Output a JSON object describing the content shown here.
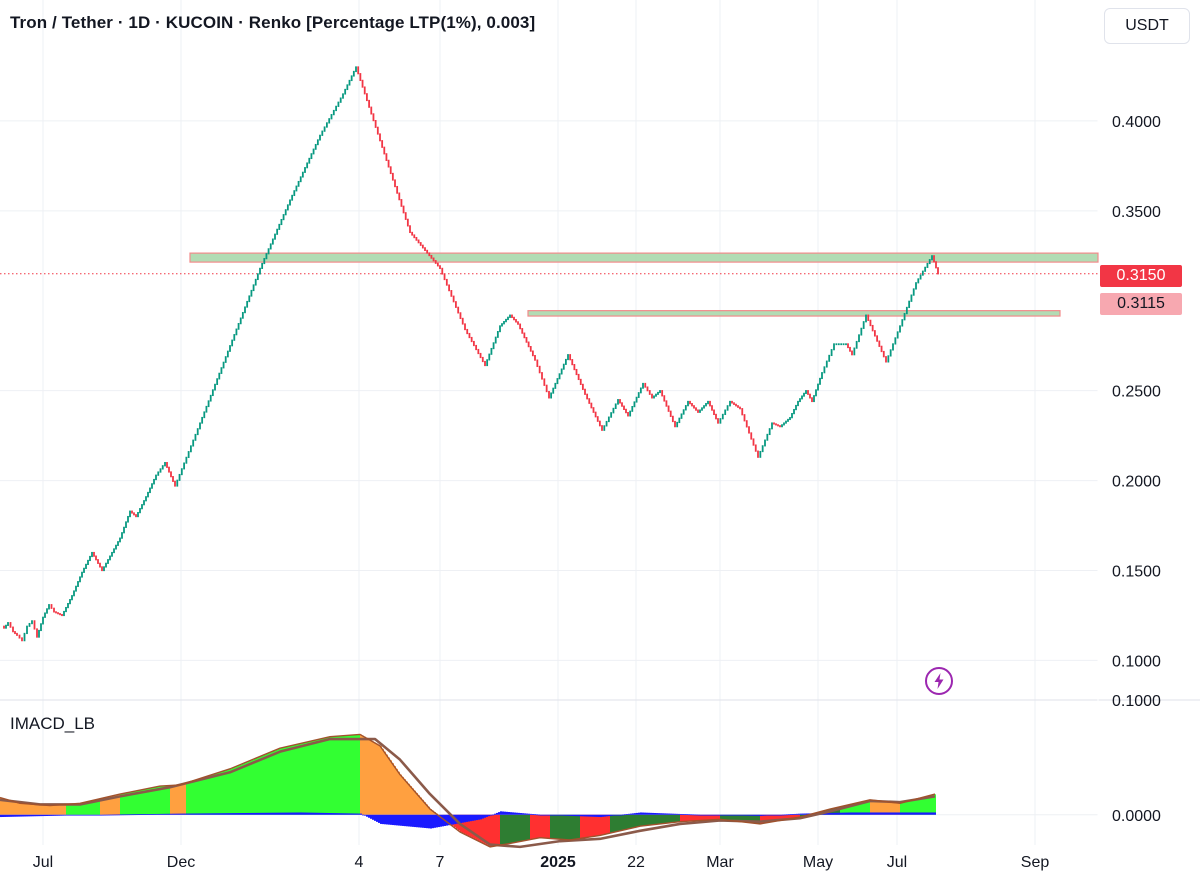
{
  "header": {
    "title": "Tron / Tether · 1D · KUCOIN · Renko [Percentage LTP(1%), 0.003]",
    "currency_button": "USDT"
  },
  "indicator": {
    "name": "IMACD_LB"
  },
  "price_tags": {
    "last_price": {
      "label": "0.3150",
      "color": "#f23645",
      "text_color": "#ffffff"
    },
    "second_price": {
      "label": "0.3115",
      "color": "#f7a8b0",
      "text_color": "#131722"
    }
  },
  "colors": {
    "up_brick": "#089981",
    "down_brick": "#f23645",
    "zone_fill": "#a5d6a7",
    "zone_border": "#f28b8b",
    "macd_line": "#a0522d",
    "signal_line": "#8b5a4a",
    "hist_lime": "#32ff32",
    "hist_green": "#2e7d32",
    "hist_orange": "#ffa040",
    "hist_red": "#ff3030",
    "hist_blue": "#1a1aff",
    "bolt": "#9c27b0"
  },
  "icons": {
    "alert": "lightning-bolt-icon"
  },
  "chart_data": [
    {
      "type": "renko",
      "title": "Tron / Tether · 1D · KUCOIN · Renko [Percentage LTP(1%), 0.003]",
      "x_ticks": [
        "Jul",
        "Dec",
        "4",
        "7",
        "2025",
        "22",
        "Mar",
        "May",
        "Jul",
        "Sep"
      ],
      "y_ticks": [
        0.1,
        0.15,
        0.2,
        0.25,
        0.35,
        0.4
      ],
      "ylim": [
        0.078,
        0.445
      ],
      "grid": true,
      "price_path": [
        [
          0,
          0.12
        ],
        [
          4,
          0.118
        ],
        [
          8,
          0.121
        ],
        [
          13,
          0.116
        ],
        [
          17,
          0.114
        ],
        [
          22,
          0.111
        ],
        [
          27,
          0.119
        ],
        [
          32,
          0.122
        ],
        [
          37,
          0.113
        ],
        [
          43,
          0.124
        ],
        [
          49,
          0.131
        ],
        [
          54,
          0.127
        ],
        [
          62,
          0.125
        ],
        [
          72,
          0.136
        ],
        [
          82,
          0.149
        ],
        [
          92,
          0.16
        ],
        [
          102,
          0.15
        ],
        [
          110,
          0.158
        ],
        [
          120,
          0.168
        ],
        [
          130,
          0.183
        ],
        [
          136,
          0.18
        ],
        [
          146,
          0.191
        ],
        [
          156,
          0.203
        ],
        [
          165,
          0.21
        ],
        [
          175,
          0.197
        ],
        [
          200,
          0.232
        ],
        [
          230,
          0.275
        ],
        [
          260,
          0.318
        ],
        [
          290,
          0.356
        ],
        [
          320,
          0.392
        ],
        [
          343,
          0.415
        ],
        [
          356,
          0.43
        ],
        [
          380,
          0.389
        ],
        [
          410,
          0.338
        ],
        [
          440,
          0.318
        ],
        [
          465,
          0.284
        ],
        [
          485,
          0.264
        ],
        [
          500,
          0.286
        ],
        [
          510,
          0.292
        ],
        [
          518,
          0.287
        ],
        [
          535,
          0.267
        ],
        [
          549,
          0.246
        ],
        [
          568,
          0.27
        ],
        [
          585,
          0.248
        ],
        [
          602,
          0.228
        ],
        [
          618,
          0.245
        ],
        [
          628,
          0.236
        ],
        [
          643,
          0.254
        ],
        [
          652,
          0.246
        ],
        [
          660,
          0.25
        ],
        [
          675,
          0.23
        ],
        [
          688,
          0.244
        ],
        [
          698,
          0.238
        ],
        [
          708,
          0.244
        ],
        [
          718,
          0.232
        ],
        [
          730,
          0.244
        ],
        [
          740,
          0.24
        ],
        [
          758,
          0.213
        ],
        [
          772,
          0.232
        ],
        [
          780,
          0.23
        ],
        [
          790,
          0.235
        ],
        [
          798,
          0.244
        ],
        [
          806,
          0.25
        ],
        [
          812,
          0.244
        ],
        [
          822,
          0.26
        ],
        [
          834,
          0.276
        ],
        [
          846,
          0.276
        ],
        [
          852,
          0.27
        ],
        [
          866,
          0.292
        ],
        [
          886,
          0.266
        ],
        [
          900,
          0.286
        ],
        [
          916,
          0.31
        ],
        [
          932,
          0.325
        ],
        [
          938,
          0.315
        ]
      ],
      "zones": [
        {
          "y_top": 0.3265,
          "y_bottom": 0.3215,
          "x_start": "Dec",
          "x_end": "Sep"
        },
        {
          "y_top": 0.2945,
          "y_bottom": 0.2915,
          "x_start": "2025",
          "x_end": "Sep"
        }
      ],
      "last_price": 0.315,
      "second_price": 0.3115
    },
    {
      "type": "histogram-with-lines",
      "title": "IMACD_LB",
      "y_ticks": [
        0.1,
        0.0
      ],
      "ylim": [
        -0.022,
        0.1
      ],
      "macd_path": [
        [
          0,
          0.015
        ],
        [
          20,
          0.01
        ],
        [
          50,
          0.008
        ],
        [
          80,
          0.01
        ],
        [
          120,
          0.018
        ],
        [
          160,
          0.025
        ],
        [
          180,
          0.026
        ],
        [
          230,
          0.04
        ],
        [
          280,
          0.058
        ],
        [
          330,
          0.068
        ],
        [
          360,
          0.07
        ],
        [
          380,
          0.06
        ],
        [
          400,
          0.035
        ],
        [
          430,
          0.005
        ],
        [
          460,
          -0.015
        ],
        [
          490,
          -0.028
        ],
        [
          510,
          -0.025
        ],
        [
          540,
          -0.02
        ],
        [
          570,
          -0.022
        ],
        [
          600,
          -0.018
        ],
        [
          640,
          -0.01
        ],
        [
          680,
          -0.006
        ],
        [
          720,
          -0.004
        ],
        [
          760,
          -0.008
        ],
        [
          800,
          -0.002
        ],
        [
          830,
          0.005
        ],
        [
          870,
          0.013
        ],
        [
          900,
          0.01
        ],
        [
          935,
          0.018
        ]
      ],
      "signal_path": [
        [
          0,
          0.013
        ],
        [
          40,
          0.009
        ],
        [
          80,
          0.009
        ],
        [
          120,
          0.016
        ],
        [
          170,
          0.024
        ],
        [
          230,
          0.037
        ],
        [
          280,
          0.055
        ],
        [
          330,
          0.066
        ],
        [
          375,
          0.066
        ],
        [
          400,
          0.048
        ],
        [
          430,
          0.018
        ],
        [
          460,
          -0.008
        ],
        [
          490,
          -0.026
        ],
        [
          520,
          -0.028
        ],
        [
          560,
          -0.023
        ],
        [
          600,
          -0.021
        ],
        [
          640,
          -0.014
        ],
        [
          680,
          -0.008
        ],
        [
          720,
          -0.005
        ],
        [
          760,
          -0.006
        ],
        [
          800,
          -0.003
        ],
        [
          830,
          0.003
        ],
        [
          870,
          0.012
        ],
        [
          900,
          0.011
        ],
        [
          935,
          0.016
        ]
      ],
      "diff_path": [
        [
          0,
          -0.002
        ],
        [
          100,
          0.0
        ],
        [
          180,
          0.001
        ],
        [
          300,
          0.002
        ],
        [
          360,
          0.001
        ],
        [
          380,
          -0.008
        ],
        [
          430,
          -0.012
        ],
        [
          480,
          -0.004
        ],
        [
          500,
          0.003
        ],
        [
          540,
          0.0
        ],
        [
          600,
          -0.002
        ],
        [
          640,
          0.002
        ],
        [
          700,
          0.0
        ],
        [
          760,
          -0.001
        ],
        [
          800,
          0.001
        ],
        [
          850,
          0.002
        ],
        [
          935,
          0.002
        ]
      ],
      "color_segments": [
        [
          0,
          65,
          "orange"
        ],
        [
          65,
          100,
          "lime"
        ],
        [
          100,
          120,
          "orange"
        ],
        [
          120,
          170,
          "lime"
        ],
        [
          170,
          185,
          "orange"
        ],
        [
          185,
          360,
          "lime"
        ],
        [
          360,
          450,
          "orange"
        ],
        [
          450,
          500,
          "red"
        ],
        [
          500,
          530,
          "green"
        ],
        [
          530,
          550,
          "red"
        ],
        [
          550,
          580,
          "green"
        ],
        [
          580,
          610,
          "red"
        ],
        [
          610,
          680,
          "green"
        ],
        [
          680,
          720,
          "red"
        ],
        [
          720,
          760,
          "green"
        ],
        [
          760,
          800,
          "red"
        ],
        [
          800,
          840,
          "green"
        ],
        [
          840,
          870,
          "lime"
        ],
        [
          870,
          900,
          "orange"
        ],
        [
          900,
          936,
          "lime"
        ]
      ]
    }
  ]
}
